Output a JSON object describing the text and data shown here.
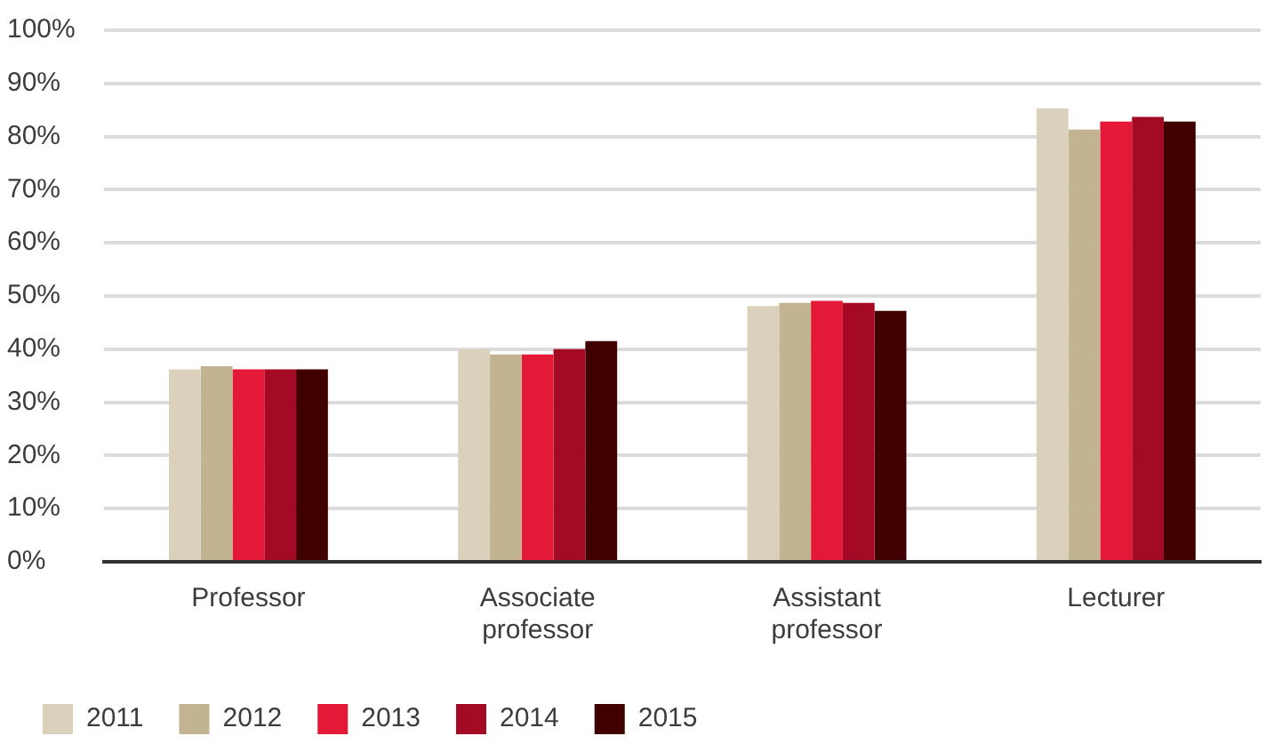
{
  "chart_data": {
    "type": "bar",
    "categories": [
      "Professor",
      "Associate professor",
      "Assistant professor",
      "Lecturer"
    ],
    "series": [
      {
        "name": "2011",
        "color": "#dbd0bb",
        "values": [
          36.2,
          40.0,
          48.1,
          85.3
        ]
      },
      {
        "name": "2012",
        "color": "#c2b391",
        "values": [
          36.8,
          39.0,
          48.7,
          81.3
        ]
      },
      {
        "name": "2013",
        "color": "#e31937",
        "values": [
          36.2,
          39.0,
          49.1,
          82.8
        ]
      },
      {
        "name": "2014",
        "color": "#a50a25",
        "values": [
          36.2,
          40.0,
          48.7,
          83.7
        ]
      },
      {
        "name": "2015",
        "color": "#400000",
        "values": [
          36.2,
          41.5,
          47.2,
          82.8
        ]
      }
    ],
    "ylim": [
      0,
      100
    ],
    "yticks": [
      {
        "value": 0,
        "label": "0%"
      },
      {
        "value": 10,
        "label": "10%"
      },
      {
        "value": 20,
        "label": "20%"
      },
      {
        "value": 30,
        "label": "30%"
      },
      {
        "value": 40,
        "label": "40%"
      },
      {
        "value": 50,
        "label": "50%"
      },
      {
        "value": 60,
        "label": "60%"
      },
      {
        "value": 70,
        "label": "70%"
      },
      {
        "value": 80,
        "label": "80%"
      },
      {
        "value": 90,
        "label": "90%"
      },
      {
        "value": 100,
        "label": "100%"
      }
    ],
    "grid": "y",
    "legend": "bottom left"
  }
}
